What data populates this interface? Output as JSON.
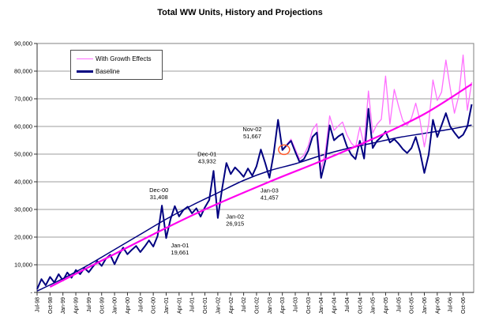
{
  "chart_data": {
    "type": "line",
    "title": "Total WW Units, History and Projections",
    "grid": true,
    "legend": {
      "position": "top-left",
      "entries": [
        {
          "label": "With Growth Effects",
          "color": "#ff6eff",
          "thickness": 1
        },
        {
          "label": "Baseline",
          "color": "#000080",
          "thickness": 3
        }
      ]
    },
    "x_axis": {
      "unit": "month",
      "start": "Jul-98",
      "end": "Dec-06",
      "months_total": 102,
      "tick_every_months": 3,
      "tick_labels": [
        "Jul-98",
        "Oct-98",
        "Jan-99",
        "Apr-99",
        "Jul-99",
        "Oct-99",
        "Jan-00",
        "Apr-00",
        "Jul-00",
        "Oct-00",
        "Jan-01",
        "Apr-01",
        "Jul-01",
        "Oct-01",
        "Jan-02",
        "Apr-02",
        "Jul-02",
        "Oct-02",
        "Jan-03",
        "Apr-03",
        "Jul-03",
        "Oct-03",
        "Jan-04",
        "Apr-04",
        "Jul-04",
        "Oct-04",
        "Jan-05",
        "Apr-05",
        "Jul-05",
        "Oct-05",
        "Jan-06",
        "Apr-06",
        "Jul-06",
        "Oct-06"
      ]
    },
    "y_axis": {
      "min": 0,
      "max": 90000,
      "step": 10000,
      "tick_values": [
        90000,
        80000,
        70000,
        60000,
        50000,
        40000,
        30000,
        20000,
        10000,
        0
      ],
      "tick_labels": [
        "90,000",
        "80,000",
        "70,000",
        "60,000",
        "50,000",
        "40,000",
        "30,000",
        "20,000",
        "10,000",
        "-"
      ]
    },
    "series": [
      {
        "name": "Baseline",
        "kind": "jagged",
        "color": "#000080",
        "width": 2,
        "start_month_index": 0,
        "values": [
          1200,
          4800,
          2600,
          5600,
          3600,
          6600,
          4300,
          7200,
          5300,
          8100,
          6600,
          8800,
          7300,
          9400,
          11300,
          9600,
          12200,
          13600,
          10200,
          13600,
          16200,
          13800,
          15400,
          16800,
          14600,
          16600,
          18800,
          16600,
          20400,
          31408,
          19661,
          26500,
          31200,
          27500,
          29800,
          31000,
          28600,
          30400,
          27400,
          30800,
          33400,
          43932,
          26915,
          37600,
          46800,
          42800,
          45200,
          43600,
          41800,
          44800,
          42200,
          45600,
          51667,
          46800,
          41457,
          50400,
          62400,
          51500,
          53200,
          54800,
          50800,
          47200,
          48200,
          51200,
          56200,
          57800,
          41400,
          47800,
          60400,
          55000,
          56400,
          57400,
          52800,
          49800,
          48200,
          54800,
          48400,
          66400,
          52200,
          54800,
          56200,
          58200,
          54200,
          55400,
          53800,
          51800,
          50400,
          52200,
          56200,
          50800,
          43200,
          49800,
          62400,
          56200,
          60400,
          64800,
          60000,
          57800,
          55800,
          57000,
          60000,
          68000
        ]
      },
      {
        "name": "With Growth Effects",
        "kind": "jagged",
        "color": "#ff6eff",
        "width": 1.3,
        "start_month_index": 57,
        "values": [
          51500,
          53400,
          55400,
          51800,
          48200,
          49600,
          53000,
          58800,
          61000,
          44200,
          51000,
          63800,
          58600,
          60200,
          61600,
          57000,
          54000,
          52400,
          59800,
          53200,
          72800,
          57600,
          60800,
          62600,
          78200,
          60800,
          73400,
          67400,
          62000,
          60400,
          63000,
          68400,
          62200,
          52600,
          61000,
          76800,
          69400,
          72400,
          84000,
          74000,
          64800,
          71000,
          85800,
          65800,
          76000
        ]
      },
      {
        "name": "Baseline Trend",
        "kind": "smooth",
        "color": "#000080",
        "width": 1.5,
        "months": [
          0,
          6,
          12,
          18,
          24,
          30,
          36,
          42,
          48,
          54,
          60,
          66,
          72,
          78,
          84,
          90,
          96,
          101
        ],
        "values": [
          500,
          5000,
          10000,
          15500,
          21000,
          26500,
          31500,
          36000,
          40500,
          44000,
          46500,
          49500,
          52000,
          54000,
          56000,
          57500,
          59000,
          60500
        ]
      },
      {
        "name": "Growth Trend",
        "kind": "smooth",
        "color": "#ff00ee",
        "width": 2.2,
        "months": [
          3,
          15,
          27,
          39,
          54,
          66,
          78,
          90,
          101
        ],
        "values": [
          2000,
          11500,
          21000,
          30000,
          40000,
          47500,
          55500,
          64500,
          75300
        ]
      }
    ],
    "annotations": [
      {
        "label": "Dec-00",
        "value": "31,408",
        "text_month": 28.3,
        "text_units": 35500
      },
      {
        "label": "Jan-01",
        "value": "19,661",
        "text_month": 33.2,
        "text_units": 15500
      },
      {
        "label": "Dec-01",
        "value": "43,932",
        "text_month": 39.5,
        "text_units": 48500
      },
      {
        "label": "Jan-02",
        "value": "26,915",
        "text_month": 46.0,
        "text_units": 25800
      },
      {
        "label": "Nov-02",
        "value": "51,667",
        "text_month": 50.0,
        "text_units": 57500
      },
      {
        "label": "Jan-03",
        "value": "41,457",
        "text_month": 54.0,
        "text_units": 35300
      }
    ],
    "marker": {
      "shape": "circle-outline",
      "color": "#ff5a2d",
      "month": 57.4,
      "units": 51600,
      "radius": 7
    },
    "colors": {
      "gridline": "#9c9c9c",
      "border": "#808080",
      "axis": "#333333",
      "tick_text": "#000000"
    }
  }
}
